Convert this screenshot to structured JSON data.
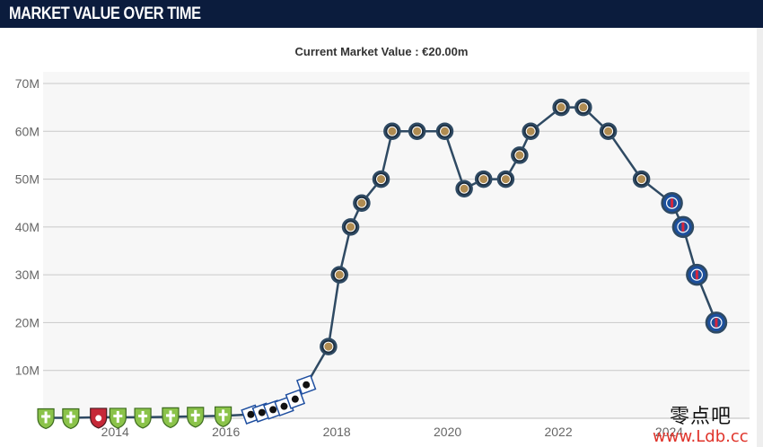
{
  "header": {
    "title": "MARKET VALUE OVER TIME"
  },
  "subtitle": "Current Market Value : €20.00m",
  "watermark": {
    "line1": "零点吧",
    "line2": "www.Ldb.cc"
  },
  "colors": {
    "line": "#2f4a63",
    "plot_background": "#f7f7f7",
    "grid": "#c9c9c9",
    "marker_border": "#2f4a63",
    "inter_fill": "#b08c52",
    "psg_fill": "#1c4f9c",
    "zilina_fill": "#8bc34a",
    "trencin_fill": "#c62838",
    "sampdoria_fill": "#1f4fa0"
  },
  "chart_data": {
    "type": "line",
    "grid": true,
    "ylim": [
      0,
      70
    ],
    "xlim": [
      2012.7,
      2025.45
    ],
    "y_ticks": [
      {
        "value": 10,
        "label": "10M"
      },
      {
        "value": 20,
        "label": "20M"
      },
      {
        "value": 30,
        "label": "30M"
      },
      {
        "value": 40,
        "label": "40M"
      },
      {
        "value": 50,
        "label": "50M"
      },
      {
        "value": 60,
        "label": "60M"
      },
      {
        "value": 70,
        "label": "70M"
      }
    ],
    "x_ticks": [
      {
        "value": 2014,
        "label": "2014"
      },
      {
        "value": 2016,
        "label": "2016"
      },
      {
        "value": 2018,
        "label": "2018"
      },
      {
        "value": 2020,
        "label": "2020"
      },
      {
        "value": 2022,
        "label": "2022"
      },
      {
        "value": 2024,
        "label": "2024"
      }
    ],
    "series": [
      {
        "values_unit": "€m",
        "points": [
          {
            "x": 2012.75,
            "y": 0.1,
            "club": "zilina"
          },
          {
            "x": 2013.2,
            "y": 0.1,
            "club": "zilina"
          },
          {
            "x": 2013.7,
            "y": 0.2,
            "club": "trencin"
          },
          {
            "x": 2014.05,
            "y": 0.2,
            "club": "zilina"
          },
          {
            "x": 2014.5,
            "y": 0.2,
            "club": "zilina"
          },
          {
            "x": 2015.0,
            "y": 0.3,
            "club": "zilina"
          },
          {
            "x": 2015.45,
            "y": 0.4,
            "club": "zilina"
          },
          {
            "x": 2015.95,
            "y": 0.5,
            "club": "zilina"
          },
          {
            "x": 2016.45,
            "y": 0.8,
            "club": "sampdoria"
          },
          {
            "x": 2016.65,
            "y": 1.2,
            "club": "sampdoria"
          },
          {
            "x": 2016.85,
            "y": 1.8,
            "club": "sampdoria"
          },
          {
            "x": 2017.05,
            "y": 2.5,
            "club": "sampdoria"
          },
          {
            "x": 2017.25,
            "y": 4.0,
            "club": "sampdoria"
          },
          {
            "x": 2017.45,
            "y": 7.0,
            "club": "sampdoria"
          },
          {
            "x": 2017.85,
            "y": 15,
            "club": "inter"
          },
          {
            "x": 2018.05,
            "y": 30,
            "club": "inter"
          },
          {
            "x": 2018.25,
            "y": 40,
            "club": "inter"
          },
          {
            "x": 2018.45,
            "y": 45,
            "club": "inter"
          },
          {
            "x": 2018.8,
            "y": 50,
            "club": "inter"
          },
          {
            "x": 2019.0,
            "y": 60,
            "club": "inter"
          },
          {
            "x": 2019.45,
            "y": 60,
            "club": "inter"
          },
          {
            "x": 2019.95,
            "y": 60,
            "club": "inter"
          },
          {
            "x": 2020.3,
            "y": 48,
            "club": "inter"
          },
          {
            "x": 2020.65,
            "y": 50,
            "club": "inter"
          },
          {
            "x": 2021.05,
            "y": 50,
            "club": "inter"
          },
          {
            "x": 2021.3,
            "y": 55,
            "club": "inter"
          },
          {
            "x": 2021.5,
            "y": 60,
            "club": "inter"
          },
          {
            "x": 2022.05,
            "y": 65,
            "club": "inter"
          },
          {
            "x": 2022.45,
            "y": 65,
            "club": "inter"
          },
          {
            "x": 2022.9,
            "y": 60,
            "club": "inter"
          },
          {
            "x": 2023.5,
            "y": 50,
            "club": "inter"
          },
          {
            "x": 2024.05,
            "y": 45,
            "club": "psg"
          },
          {
            "x": 2024.25,
            "y": 40,
            "club": "psg"
          },
          {
            "x": 2024.5,
            "y": 30,
            "club": "psg"
          },
          {
            "x": 2024.85,
            "y": 20,
            "club": "psg"
          }
        ]
      }
    ]
  }
}
